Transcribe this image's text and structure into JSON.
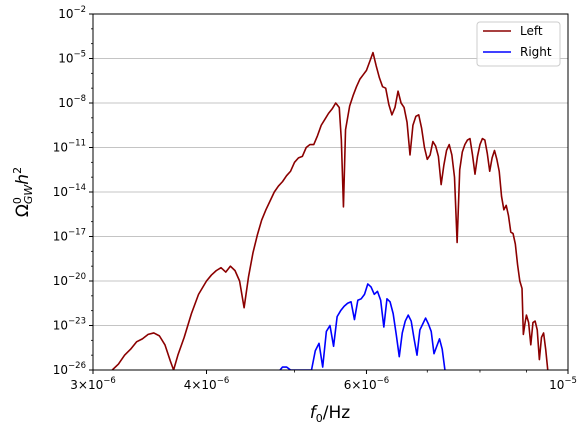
{
  "chart_data": {
    "type": "line",
    "xscale": "log",
    "yscale": "log",
    "xlim": [
      3e-06,
      1e-05
    ],
    "ylim": [
      1e-26,
      0.01
    ],
    "grid": "horizontal",
    "legend_position": "top-right",
    "x_ticks": [
      {
        "value": 3e-06,
        "base": "3×10",
        "exp": "−6"
      },
      {
        "value": 4e-06,
        "base": "4×10",
        "exp": "−6"
      },
      {
        "value": 6e-06,
        "base": "6×10",
        "exp": "−6"
      },
      {
        "value": 1e-05,
        "base": "10",
        "exp": "−5"
      }
    ],
    "y_ticks": [
      {
        "value": 0.01,
        "base": "10",
        "exp": "−2"
      },
      {
        "value": 1e-05,
        "base": "10",
        "exp": "−5"
      },
      {
        "value": 1e-08,
        "base": "10",
        "exp": "−8"
      },
      {
        "value": 1e-11,
        "base": "10",
        "exp": "−11"
      },
      {
        "value": 1e-14,
        "base": "10",
        "exp": "−14"
      },
      {
        "value": 1e-17,
        "base": "10",
        "exp": "−17"
      },
      {
        "value": 1e-20,
        "base": "10",
        "exp": "−20"
      },
      {
        "value": 1e-23,
        "base": "10",
        "exp": "−23"
      },
      {
        "value": 1e-26,
        "base": "10",
        "exp": "−26"
      }
    ],
    "xlabel": {
      "f": "f",
      "sub": "0",
      "rest": "/Hz"
    },
    "ylabel": {
      "omega": "Ω",
      "sup": "0",
      "sub": "GW",
      "h": "h",
      "hsup": "2"
    },
    "series": [
      {
        "name": "Left",
        "color": "#8b0000",
        "points": [
          [
            3.15e-06,
            -26.0
          ],
          [
            3.2e-06,
            -25.6
          ],
          [
            3.25e-06,
            -25.0
          ],
          [
            3.3e-06,
            -24.6
          ],
          [
            3.35e-06,
            -24.1
          ],
          [
            3.4e-06,
            -23.9
          ],
          [
            3.45e-06,
            -23.6
          ],
          [
            3.5e-06,
            -23.5
          ],
          [
            3.55e-06,
            -23.7
          ],
          [
            3.6e-06,
            -24.3
          ],
          [
            3.65e-06,
            -25.4
          ],
          [
            3.68e-06,
            -26.0
          ],
          [
            3.72e-06,
            -25.0
          ],
          [
            3.78e-06,
            -23.8
          ],
          [
            3.85e-06,
            -22.2
          ],
          [
            3.92e-06,
            -20.9
          ],
          [
            4e-06,
            -20.0
          ],
          [
            4.05e-06,
            -19.6
          ],
          [
            4.1e-06,
            -19.3
          ],
          [
            4.15e-06,
            -19.1
          ],
          [
            4.2e-06,
            -19.4
          ],
          [
            4.25e-06,
            -19.0
          ],
          [
            4.3e-06,
            -19.3
          ],
          [
            4.35e-06,
            -20.0
          ],
          [
            4.4e-06,
            -21.8
          ],
          [
            4.45e-06,
            -19.7
          ],
          [
            4.5e-06,
            -18.1
          ],
          [
            4.55e-06,
            -16.9
          ],
          [
            4.6e-06,
            -15.9
          ],
          [
            4.65e-06,
            -15.2
          ],
          [
            4.7e-06,
            -14.6
          ],
          [
            4.75e-06,
            -14.0
          ],
          [
            4.8e-06,
            -13.6
          ],
          [
            4.85e-06,
            -13.3
          ],
          [
            4.9e-06,
            -12.9
          ],
          [
            4.95e-06,
            -12.6
          ],
          [
            5e-06,
            -12.0
          ],
          [
            5.05e-06,
            -11.7
          ],
          [
            5.1e-06,
            -11.6
          ],
          [
            5.15e-06,
            -11.0
          ],
          [
            5.2e-06,
            -10.8
          ],
          [
            5.25e-06,
            -10.8
          ],
          [
            5.3e-06,
            -10.2
          ],
          [
            5.35e-06,
            -9.5
          ],
          [
            5.4e-06,
            -9.1
          ],
          [
            5.45e-06,
            -8.7
          ],
          [
            5.5e-06,
            -8.4
          ],
          [
            5.55e-06,
            -8.0
          ],
          [
            5.6e-06,
            -8.3
          ],
          [
            5.63e-06,
            -10.5
          ],
          [
            5.66e-06,
            -15.0
          ],
          [
            5.69e-06,
            -9.8
          ],
          [
            5.75e-06,
            -8.2
          ],
          [
            5.8e-06,
            -7.5
          ],
          [
            5.85e-06,
            -6.9
          ],
          [
            5.9e-06,
            -6.4
          ],
          [
            5.95e-06,
            -6.1
          ],
          [
            6e-06,
            -5.8
          ],
          [
            6.05e-06,
            -5.2
          ],
          [
            6.1e-06,
            -4.6
          ],
          [
            6.15e-06,
            -5.5
          ],
          [
            6.2e-06,
            -6.3
          ],
          [
            6.25e-06,
            -6.9
          ],
          [
            6.3e-06,
            -7.0
          ],
          [
            6.35e-06,
            -8.1
          ],
          [
            6.4e-06,
            -8.8
          ],
          [
            6.45e-06,
            -8.3
          ],
          [
            6.5e-06,
            -7.2
          ],
          [
            6.55e-06,
            -8.0
          ],
          [
            6.6e-06,
            -8.3
          ],
          [
            6.65e-06,
            -9.3
          ],
          [
            6.7e-06,
            -11.5
          ],
          [
            6.75e-06,
            -9.5
          ],
          [
            6.8e-06,
            -8.9
          ],
          [
            6.85e-06,
            -8.8
          ],
          [
            6.9e-06,
            -9.7
          ],
          [
            6.95e-06,
            -11.0
          ],
          [
            7e-06,
            -11.8
          ],
          [
            7.05e-06,
            -11.5
          ],
          [
            7.1e-06,
            -10.6
          ],
          [
            7.15e-06,
            -10.9
          ],
          [
            7.2e-06,
            -11.6
          ],
          [
            7.25e-06,
            -13.5
          ],
          [
            7.3e-06,
            -12.2
          ],
          [
            7.35e-06,
            -11.2
          ],
          [
            7.4e-06,
            -10.8
          ],
          [
            7.45e-06,
            -11.5
          ],
          [
            7.5e-06,
            -13.0
          ],
          [
            7.55e-06,
            -17.4
          ],
          [
            7.6e-06,
            -12.5
          ],
          [
            7.65e-06,
            -11.3
          ],
          [
            7.7e-06,
            -10.8
          ],
          [
            7.75e-06,
            -10.5
          ],
          [
            7.8e-06,
            -10.4
          ],
          [
            7.85e-06,
            -11.5
          ],
          [
            7.9e-06,
            -12.8
          ],
          [
            7.95e-06,
            -11.6
          ],
          [
            8e-06,
            -10.8
          ],
          [
            8.05e-06,
            -10.4
          ],
          [
            8.1e-06,
            -10.5
          ],
          [
            8.15e-06,
            -11.4
          ],
          [
            8.2e-06,
            -12.6
          ],
          [
            8.25e-06,
            -11.7
          ],
          [
            8.3e-06,
            -11.2
          ],
          [
            8.35e-06,
            -11.8
          ],
          [
            8.4e-06,
            -12.6
          ],
          [
            8.45e-06,
            -14.3
          ],
          [
            8.5e-06,
            -15.2
          ],
          [
            8.55e-06,
            -14.9
          ],
          [
            8.6e-06,
            -15.6
          ],
          [
            8.65e-06,
            -16.7
          ],
          [
            8.7e-06,
            -16.8
          ],
          [
            8.75e-06,
            -17.5
          ],
          [
            8.8e-06,
            -18.9
          ],
          [
            8.85e-06,
            -20.0
          ],
          [
            8.9e-06,
            -20.5
          ],
          [
            8.93e-06,
            -23.6
          ],
          [
            8.97e-06,
            -22.8
          ],
          [
            9e-06,
            -22.3
          ],
          [
            9.05e-06,
            -22.8
          ],
          [
            9.1e-06,
            -24.3
          ],
          [
            9.15e-06,
            -22.8
          ],
          [
            9.2e-06,
            -22.7
          ],
          [
            9.25e-06,
            -23.3
          ],
          [
            9.3e-06,
            -25.3
          ],
          [
            9.35e-06,
            -23.8
          ],
          [
            9.4e-06,
            -23.5
          ],
          [
            9.45e-06,
            -24.6
          ],
          [
            9.5e-06,
            -26.0
          ]
        ]
      },
      {
        "name": "Right",
        "color": "#0000ff",
        "points": [
          [
            4.82e-06,
            -26.0
          ],
          [
            4.85e-06,
            -25.8
          ],
          [
            4.9e-06,
            -25.8
          ],
          [
            4.95e-06,
            -26.0
          ],
          [
            5.22e-06,
            -26.0
          ],
          [
            5.27e-06,
            -24.7
          ],
          [
            5.32e-06,
            -24.2
          ],
          [
            5.37e-06,
            -25.8
          ],
          [
            5.42e-06,
            -23.4
          ],
          [
            5.47e-06,
            -23.0
          ],
          [
            5.52e-06,
            -24.4
          ],
          [
            5.57e-06,
            -22.4
          ],
          [
            5.62e-06,
            -22.0
          ],
          [
            5.67e-06,
            -21.7
          ],
          [
            5.72e-06,
            -21.5
          ],
          [
            5.77e-06,
            -21.4
          ],
          [
            5.82e-06,
            -22.6
          ],
          [
            5.87e-06,
            -21.3
          ],
          [
            5.92e-06,
            -21.2
          ],
          [
            5.97e-06,
            -20.9
          ],
          [
            6.02e-06,
            -20.2
          ],
          [
            6.07e-06,
            -20.4
          ],
          [
            6.12e-06,
            -20.9
          ],
          [
            6.17e-06,
            -20.7
          ],
          [
            6.22e-06,
            -21.3
          ],
          [
            6.27e-06,
            -23.1
          ],
          [
            6.32e-06,
            -21.2
          ],
          [
            6.37e-06,
            -21.4
          ],
          [
            6.42e-06,
            -22.2
          ],
          [
            6.47e-06,
            -23.6
          ],
          [
            6.52e-06,
            -25.1
          ],
          [
            6.57e-06,
            -23.5
          ],
          [
            6.62e-06,
            -22.7
          ],
          [
            6.67e-06,
            -22.3
          ],
          [
            6.72e-06,
            -22.7
          ],
          [
            6.77e-06,
            -23.9
          ],
          [
            6.82e-06,
            -25.0
          ],
          [
            6.87e-06,
            -23.3
          ],
          [
            6.92e-06,
            -22.9
          ],
          [
            6.97e-06,
            -22.5
          ],
          [
            7.02e-06,
            -22.9
          ],
          [
            7.07e-06,
            -23.4
          ],
          [
            7.12e-06,
            -24.9
          ],
          [
            7.17e-06,
            -24.4
          ],
          [
            7.22e-06,
            -23.9
          ],
          [
            7.27e-06,
            -24.6
          ],
          [
            7.32e-06,
            -26.0
          ]
        ]
      }
    ]
  }
}
